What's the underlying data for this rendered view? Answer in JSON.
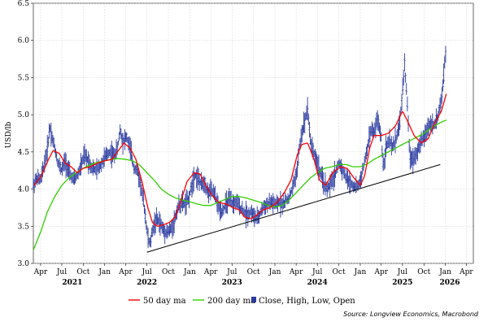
{
  "chart_data": {
    "type": "line",
    "ylabel": "USD/lb",
    "ylim": [
      3.0,
      6.5
    ],
    "y_ticks": [
      "3.0",
      "3.5",
      "4.0",
      "4.5",
      "5.0",
      "5.5",
      "6.0",
      "6.5"
    ],
    "y_tick_values": [
      3.0,
      3.5,
      4.0,
      4.5,
      5.0,
      5.5,
      6.0,
      6.5
    ],
    "xlim": [
      "2021-03-01",
      "2026-05-01"
    ],
    "x_ticks": [
      {
        "label": "Apr",
        "date": "2021-04-01"
      },
      {
        "label": "Jul",
        "date": "2021-07-01"
      },
      {
        "label": "Oct",
        "date": "2021-10-01"
      },
      {
        "label": "Jan",
        "date": "2022-01-01"
      },
      {
        "label": "Apr",
        "date": "2022-04-01"
      },
      {
        "label": "Jul",
        "date": "2022-07-01"
      },
      {
        "label": "Oct",
        "date": "2022-10-01"
      },
      {
        "label": "Jan",
        "date": "2023-01-01"
      },
      {
        "label": "Apr",
        "date": "2023-04-01"
      },
      {
        "label": "Jul",
        "date": "2023-07-01"
      },
      {
        "label": "Oct",
        "date": "2023-10-01"
      },
      {
        "label": "Jan",
        "date": "2024-01-01"
      },
      {
        "label": "Apr",
        "date": "2024-04-01"
      },
      {
        "label": "Jul",
        "date": "2024-07-01"
      },
      {
        "label": "Oct",
        "date": "2024-10-01"
      },
      {
        "label": "Jan",
        "date": "2025-01-01"
      },
      {
        "label": "Apr",
        "date": "2025-04-01"
      },
      {
        "label": "Jul",
        "date": "2025-07-01"
      },
      {
        "label": "Oct",
        "date": "2025-10-01"
      },
      {
        "label": "Jan",
        "date": "2026-01-01"
      },
      {
        "label": "Apr",
        "date": "2026-04-01"
      }
    ],
    "year_labels": [
      {
        "label": "2021",
        "date": "2021-08-15"
      },
      {
        "label": "2022",
        "date": "2022-07-01"
      },
      {
        "label": "2023",
        "date": "2023-07-01"
      },
      {
        "label": "2024",
        "date": "2024-07-01"
      },
      {
        "label": "2025",
        "date": "2025-07-01"
      },
      {
        "label": "2026",
        "date": "2026-01-20"
      }
    ],
    "grid": true,
    "legend_position": "bottom",
    "series": [
      {
        "name": "50 day ma",
        "color": "#ff0000",
        "kind": "line",
        "points": [
          [
            "2021-03-05",
            4.05
          ],
          [
            "2021-04-05",
            4.18
          ],
          [
            "2021-05-05",
            4.4
          ],
          [
            "2021-05-25",
            4.52
          ],
          [
            "2021-06-20",
            4.48
          ],
          [
            "2021-07-15",
            4.35
          ],
          [
            "2021-08-10",
            4.3
          ],
          [
            "2021-09-05",
            4.22
          ],
          [
            "2021-10-01",
            4.28
          ],
          [
            "2021-11-01",
            4.3
          ],
          [
            "2021-12-01",
            4.35
          ],
          [
            "2022-01-01",
            4.38
          ],
          [
            "2022-02-01",
            4.4
          ],
          [
            "2022-03-01",
            4.52
          ],
          [
            "2022-03-25",
            4.62
          ],
          [
            "2022-04-20",
            4.55
          ],
          [
            "2022-05-15",
            4.4
          ],
          [
            "2022-06-10",
            4.1
          ],
          [
            "2022-07-05",
            3.75
          ],
          [
            "2022-07-25",
            3.55
          ],
          [
            "2022-08-15",
            3.5
          ],
          [
            "2022-09-10",
            3.52
          ],
          [
            "2022-10-05",
            3.55
          ],
          [
            "2022-10-30",
            3.62
          ],
          [
            "2022-11-25",
            3.85
          ],
          [
            "2022-12-20",
            4.1
          ],
          [
            "2023-01-20",
            4.22
          ],
          [
            "2023-02-15",
            4.2
          ],
          [
            "2023-03-10",
            4.05
          ],
          [
            "2023-04-05",
            3.92
          ],
          [
            "2023-05-05",
            3.82
          ],
          [
            "2023-06-05",
            3.8
          ],
          [
            "2023-07-05",
            3.75
          ],
          [
            "2023-08-01",
            3.72
          ],
          [
            "2023-08-25",
            3.62
          ],
          [
            "2023-09-20",
            3.6
          ],
          [
            "2023-10-15",
            3.65
          ],
          [
            "2023-11-10",
            3.72
          ],
          [
            "2023-12-10",
            3.75
          ],
          [
            "2024-01-10",
            3.82
          ],
          [
            "2024-02-10",
            3.95
          ],
          [
            "2024-03-10",
            4.12
          ],
          [
            "2024-04-05",
            4.45
          ],
          [
            "2024-04-25",
            4.6
          ],
          [
            "2024-05-20",
            4.62
          ],
          [
            "2024-06-15",
            4.42
          ],
          [
            "2024-07-10",
            4.12
          ],
          [
            "2024-08-05",
            4.05
          ],
          [
            "2024-09-05",
            4.22
          ],
          [
            "2024-10-05",
            4.3
          ],
          [
            "2024-11-05",
            4.28
          ],
          [
            "2024-12-05",
            4.15
          ],
          [
            "2025-01-01",
            4.05
          ],
          [
            "2025-01-20",
            4.18
          ],
          [
            "2025-02-10",
            4.55
          ],
          [
            "2025-03-01",
            4.72
          ],
          [
            "2025-04-01",
            4.72
          ],
          [
            "2025-05-01",
            4.75
          ],
          [
            "2025-06-01",
            4.85
          ],
          [
            "2025-07-01",
            5.05
          ],
          [
            "2025-07-25",
            4.9
          ],
          [
            "2025-08-20",
            4.72
          ],
          [
            "2025-09-20",
            4.62
          ],
          [
            "2025-10-20",
            4.68
          ],
          [
            "2025-11-15",
            4.88
          ],
          [
            "2025-12-15",
            5.05
          ],
          [
            "2026-01-05",
            5.28
          ]
        ]
      },
      {
        "name": "200 day ma",
        "color": "#33cc00",
        "kind": "line",
        "points": [
          [
            "2021-03-01",
            3.18
          ],
          [
            "2021-04-01",
            3.42
          ],
          [
            "2021-05-01",
            3.7
          ],
          [
            "2021-06-01",
            3.9
          ],
          [
            "2021-07-01",
            4.05
          ],
          [
            "2021-08-01",
            4.15
          ],
          [
            "2021-09-01",
            4.22
          ],
          [
            "2021-10-01",
            4.28
          ],
          [
            "2021-11-01",
            4.33
          ],
          [
            "2021-12-01",
            4.36
          ],
          [
            "2022-01-01",
            4.38
          ],
          [
            "2022-02-01",
            4.4
          ],
          [
            "2022-03-01",
            4.41
          ],
          [
            "2022-04-01",
            4.4
          ],
          [
            "2022-05-01",
            4.38
          ],
          [
            "2022-06-01",
            4.32
          ],
          [
            "2022-07-01",
            4.22
          ],
          [
            "2022-08-01",
            4.12
          ],
          [
            "2022-09-01",
            4.0
          ],
          [
            "2022-10-01",
            3.93
          ],
          [
            "2022-11-01",
            3.88
          ],
          [
            "2022-12-01",
            3.85
          ],
          [
            "2023-01-01",
            3.83
          ],
          [
            "2023-02-01",
            3.8
          ],
          [
            "2023-03-01",
            3.78
          ],
          [
            "2023-04-01",
            3.78
          ],
          [
            "2023-05-01",
            3.82
          ],
          [
            "2023-06-01",
            3.86
          ],
          [
            "2023-07-01",
            3.9
          ],
          [
            "2023-08-01",
            3.9
          ],
          [
            "2023-09-01",
            3.88
          ],
          [
            "2023-10-01",
            3.85
          ],
          [
            "2023-11-01",
            3.82
          ],
          [
            "2023-12-01",
            3.78
          ],
          [
            "2024-01-01",
            3.76
          ],
          [
            "2024-02-01",
            3.78
          ],
          [
            "2024-03-01",
            3.85
          ],
          [
            "2024-04-01",
            3.95
          ],
          [
            "2024-05-01",
            4.05
          ],
          [
            "2024-06-01",
            4.15
          ],
          [
            "2024-07-01",
            4.22
          ],
          [
            "2024-08-01",
            4.28
          ],
          [
            "2024-09-01",
            4.3
          ],
          [
            "2024-10-01",
            4.33
          ],
          [
            "2024-11-01",
            4.33
          ],
          [
            "2024-12-01",
            4.3
          ],
          [
            "2025-01-01",
            4.3
          ],
          [
            "2025-02-01",
            4.34
          ],
          [
            "2025-03-01",
            4.4
          ],
          [
            "2025-04-01",
            4.45
          ],
          [
            "2025-05-01",
            4.5
          ],
          [
            "2025-06-01",
            4.55
          ],
          [
            "2025-07-01",
            4.6
          ],
          [
            "2025-08-01",
            4.65
          ],
          [
            "2025-09-01",
            4.7
          ],
          [
            "2025-10-01",
            4.75
          ],
          [
            "2025-11-01",
            4.82
          ],
          [
            "2025-12-01",
            4.88
          ],
          [
            "2026-01-05",
            4.93
          ]
        ]
      },
      {
        "name": "Close, High, Low, Open",
        "color": "#2a3aa0",
        "kind": "ohlc",
        "anchors": [
          [
            "2021-03-01",
            4.05
          ],
          [
            "2021-03-15",
            4.15
          ],
          [
            "2021-04-01",
            4.12
          ],
          [
            "2021-04-15",
            4.3
          ],
          [
            "2021-05-01",
            4.55
          ],
          [
            "2021-05-10",
            4.85
          ],
          [
            "2021-05-20",
            4.7
          ],
          [
            "2021-06-01",
            4.55
          ],
          [
            "2021-06-15",
            4.35
          ],
          [
            "2021-07-01",
            4.25
          ],
          [
            "2021-07-15",
            4.38
          ],
          [
            "2021-08-01",
            4.22
          ],
          [
            "2021-08-20",
            4.12
          ],
          [
            "2021-09-05",
            4.18
          ],
          [
            "2021-09-20",
            4.3
          ],
          [
            "2021-10-05",
            4.45
          ],
          [
            "2021-10-20",
            4.4
          ],
          [
            "2021-11-05",
            4.3
          ],
          [
            "2021-11-25",
            4.25
          ],
          [
            "2021-12-10",
            4.3
          ],
          [
            "2022-01-01",
            4.42
          ],
          [
            "2022-01-20",
            4.5
          ],
          [
            "2022-02-10",
            4.45
          ],
          [
            "2022-02-25",
            4.55
          ],
          [
            "2022-03-08",
            4.8
          ],
          [
            "2022-03-20",
            4.65
          ],
          [
            "2022-04-05",
            4.7
          ],
          [
            "2022-04-20",
            4.55
          ],
          [
            "2022-05-05",
            4.3
          ],
          [
            "2022-05-20",
            4.25
          ],
          [
            "2022-06-05",
            4.05
          ],
          [
            "2022-06-20",
            3.75
          ],
          [
            "2022-07-05",
            3.35
          ],
          [
            "2022-07-15",
            3.25
          ],
          [
            "2022-07-25",
            3.45
          ],
          [
            "2022-08-10",
            3.6
          ],
          [
            "2022-08-25",
            3.55
          ],
          [
            "2022-09-10",
            3.45
          ],
          [
            "2022-09-25",
            3.42
          ],
          [
            "2022-10-10",
            3.45
          ],
          [
            "2022-10-25",
            3.55
          ],
          [
            "2022-11-10",
            3.75
          ],
          [
            "2022-11-25",
            3.82
          ],
          [
            "2022-12-10",
            3.8
          ],
          [
            "2022-12-25",
            3.85
          ],
          [
            "2023-01-10",
            4.05
          ],
          [
            "2023-01-20",
            4.2
          ],
          [
            "2023-02-05",
            4.15
          ],
          [
            "2023-02-20",
            4.05
          ],
          [
            "2023-03-05",
            4.1
          ],
          [
            "2023-03-20",
            3.95
          ],
          [
            "2023-04-05",
            3.98
          ],
          [
            "2023-04-20",
            3.9
          ],
          [
            "2023-05-05",
            3.75
          ],
          [
            "2023-05-20",
            3.7
          ],
          [
            "2023-06-05",
            3.8
          ],
          [
            "2023-06-20",
            3.85
          ],
          [
            "2023-07-05",
            3.8
          ],
          [
            "2023-07-20",
            3.82
          ],
          [
            "2023-08-05",
            3.75
          ],
          [
            "2023-08-20",
            3.7
          ],
          [
            "2023-09-05",
            3.65
          ],
          [
            "2023-09-20",
            3.7
          ],
          [
            "2023-10-05",
            3.62
          ],
          [
            "2023-10-20",
            3.6
          ],
          [
            "2023-11-05",
            3.72
          ],
          [
            "2023-11-20",
            3.78
          ],
          [
            "2023-12-05",
            3.8
          ],
          [
            "2023-12-20",
            3.82
          ],
          [
            "2024-01-05",
            3.78
          ],
          [
            "2024-01-20",
            3.82
          ],
          [
            "2024-02-05",
            3.8
          ],
          [
            "2024-02-20",
            3.85
          ],
          [
            "2024-03-05",
            3.9
          ],
          [
            "2024-03-20",
            4.05
          ],
          [
            "2024-04-05",
            4.25
          ],
          [
            "2024-04-15",
            4.55
          ],
          [
            "2024-04-25",
            4.75
          ],
          [
            "2024-05-10",
            4.95
          ],
          [
            "2024-05-20",
            5.1
          ],
          [
            "2024-06-01",
            4.65
          ],
          [
            "2024-06-15",
            4.5
          ],
          [
            "2024-07-01",
            4.35
          ],
          [
            "2024-07-15",
            4.2
          ],
          [
            "2024-08-01",
            4.05
          ],
          [
            "2024-08-15",
            4.0
          ],
          [
            "2024-09-01",
            4.1
          ],
          [
            "2024-09-15",
            4.2
          ],
          [
            "2024-10-01",
            4.35
          ],
          [
            "2024-10-15",
            4.28
          ],
          [
            "2024-11-01",
            4.15
          ],
          [
            "2024-11-15",
            4.1
          ],
          [
            "2024-12-01",
            4.05
          ],
          [
            "2024-12-15",
            4.02
          ],
          [
            "2025-01-01",
            4.1
          ],
          [
            "2025-01-15",
            4.3
          ],
          [
            "2025-02-01",
            4.55
          ],
          [
            "2025-02-15",
            4.8
          ],
          [
            "2025-03-01",
            4.75
          ],
          [
            "2025-03-15",
            4.95
          ],
          [
            "2025-04-01",
            4.7
          ],
          [
            "2025-04-10",
            4.3
          ],
          [
            "2025-04-20",
            4.55
          ],
          [
            "2025-05-05",
            4.65
          ],
          [
            "2025-05-20",
            4.55
          ],
          [
            "2025-06-05",
            4.7
          ],
          [
            "2025-06-20",
            4.9
          ],
          [
            "2025-07-01",
            5.3
          ],
          [
            "2025-07-10",
            5.7
          ],
          [
            "2025-07-20",
            5.25
          ],
          [
            "2025-08-01",
            4.45
          ],
          [
            "2025-08-15",
            4.4
          ],
          [
            "2025-09-01",
            4.5
          ],
          [
            "2025-09-15",
            4.6
          ],
          [
            "2025-10-01",
            4.7
          ],
          [
            "2025-10-15",
            4.8
          ],
          [
            "2025-11-01",
            4.9
          ],
          [
            "2025-11-15",
            4.85
          ],
          [
            "2025-12-01",
            5.0
          ],
          [
            "2025-12-15",
            5.2
          ],
          [
            "2025-12-25",
            5.5
          ],
          [
            "2026-01-01",
            5.85
          ],
          [
            "2026-01-05",
            5.75
          ]
        ]
      }
    ],
    "trendline": [
      [
        "2022-07-01",
        3.15
      ],
      [
        "2025-12-10",
        4.33
      ]
    ],
    "source": "Source: Longview Economics, Macrobond"
  }
}
